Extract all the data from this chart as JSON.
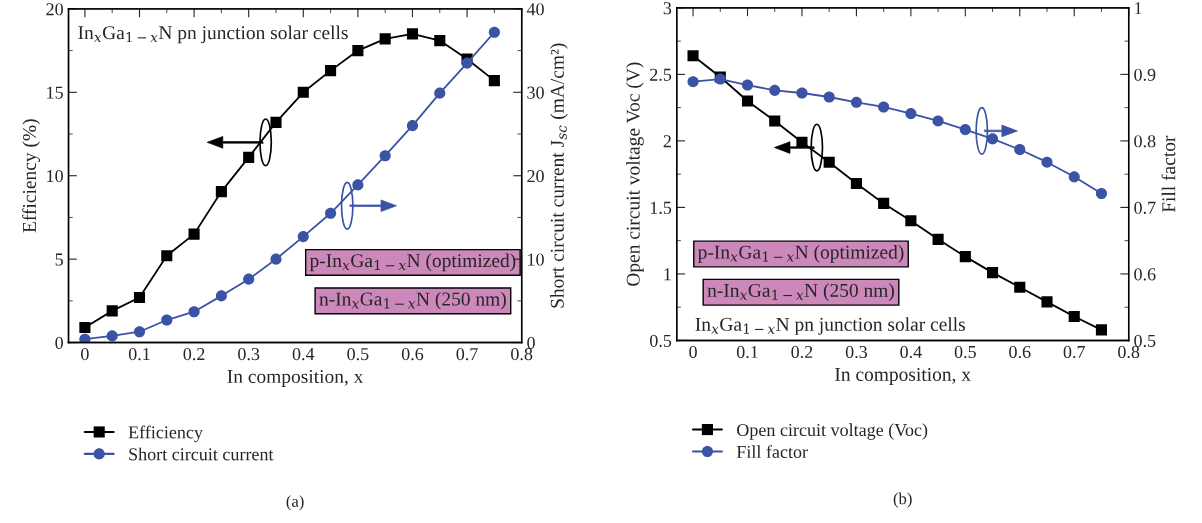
{
  "chart_data": [
    {
      "type": "line",
      "xlabel": "In composition, x",
      "ylabel": "Efficiency (%)",
      "y2label": "Short circuit current J$_{sc}$ (mA/cm²)",
      "x": [
        0,
        0.05,
        0.1,
        0.15,
        0.2,
        0.25,
        0.3,
        0.35,
        0.4,
        0.45,
        0.5,
        0.55,
        0.6,
        0.65,
        0.7,
        0.75
      ],
      "xlim": [
        -0.03,
        0.8
      ],
      "xticks": [
        0,
        0.1,
        0.2,
        0.3,
        0.4,
        0.5,
        0.6,
        0.7,
        0.8
      ],
      "ylim": [
        0,
        20
      ],
      "yticks": [
        0,
        5,
        10,
        15,
        20
      ],
      "y2lim": [
        0,
        40
      ],
      "y2ticks": [
        0,
        10,
        20,
        30,
        40
      ],
      "grid": false,
      "legend": "bottom",
      "series": [
        {
          "name": "Efficiency",
          "color": "#000000",
          "marker": "square",
          "values": [
            0.9,
            1.9,
            2.7,
            5.2,
            6.5,
            9.05,
            11.1,
            13.2,
            15.0,
            16.3,
            17.5,
            18.2,
            18.5,
            18.1,
            17.0,
            15.7
          ]
        },
        {
          "name": "Short circuit current",
          "color": "#3a53a4",
          "marker": "circle",
          "axis": "y2",
          "values": [
            0.4,
            0.8,
            1.3,
            2.7,
            3.7,
            5.6,
            7.6,
            10.0,
            12.7,
            15.5,
            18.9,
            22.4,
            26.0,
            29.9,
            33.5,
            37.2
          ]
        }
      ],
      "annotations": [
        "In$_{x}$Ga$_{1−x}$N pn junction solar cells",
        "p-In$_{x}$Ga$_{1−x}$N (optimized)",
        "n-In$_{x}$Ga$_{1−x}$N (250 nm)",
        "(a)"
      ]
    },
    {
      "type": "line",
      "xlabel": "In composition, x",
      "ylabel": "Open circuit voltage Voc (V)",
      "y2label": "Fill factor",
      "x": [
        0,
        0.05,
        0.1,
        0.15,
        0.2,
        0.25,
        0.3,
        0.35,
        0.4,
        0.45,
        0.5,
        0.55,
        0.6,
        0.65,
        0.7,
        0.75
      ],
      "xlim": [
        -0.03,
        0.8
      ],
      "xticks": [
        0,
        0.1,
        0.2,
        0.3,
        0.4,
        0.5,
        0.6,
        0.7,
        0.8
      ],
      "ylim": [
        0.5,
        3
      ],
      "yticks": [
        0.5,
        1,
        1.5,
        2,
        2.5,
        3
      ],
      "y2lim": [
        0.5,
        1
      ],
      "y2ticks": [
        0.5,
        0.6,
        0.7,
        0.8,
        0.9,
        1
      ],
      "grid": false,
      "legend": "bottom",
      "series": [
        {
          "name": "Open circuit voltage (Voc)",
          "color": "#000000",
          "marker": "square",
          "values": [
            2.64,
            2.48,
            2.3,
            2.15,
            1.99,
            1.84,
            1.68,
            1.53,
            1.4,
            1.26,
            1.13,
            1.01,
            0.9,
            0.79,
            0.68,
            0.58
          ]
        },
        {
          "name": "Fill factor",
          "color": "#3a53a4",
          "marker": "circle",
          "axis": "y2",
          "values": [
            0.889,
            0.893,
            0.884,
            0.876,
            0.872,
            0.866,
            0.858,
            0.851,
            0.841,
            0.83,
            0.817,
            0.803,
            0.787,
            0.768,
            0.746,
            0.721
          ]
        }
      ],
      "annotations": [
        "In$_{x}$Ga$_{1−x}$N pn junction solar cells",
        "p-In$_{x}$Ga$_{1−x}$N (optimized)",
        "n-In$_{x}$Ga$_{1−x}$N (250 nm)",
        "(b)"
      ]
    }
  ]
}
